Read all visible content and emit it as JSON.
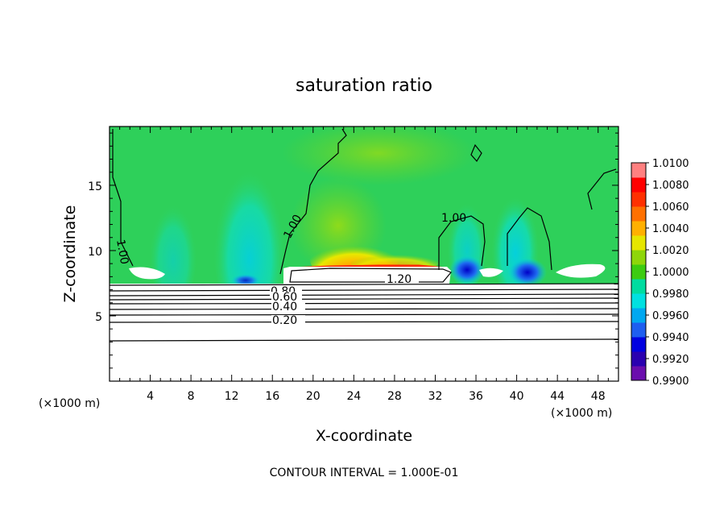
{
  "chart_data": {
    "type": "heatmap",
    "title": "saturation ratio",
    "xlabel": "X-coordinate",
    "ylabel": "Z-coordinate",
    "x_unit": "(×1000 m)",
    "z_unit": "(×1000 m)",
    "xlim": [
      0,
      50
    ],
    "ylim": [
      0,
      19.5
    ],
    "x_ticks": [
      4,
      8,
      12,
      16,
      20,
      24,
      28,
      32,
      36,
      40,
      44,
      48
    ],
    "y_ticks": [
      5,
      10,
      15
    ],
    "colorbar": {
      "labels": [
        "1.0100",
        "1.0080",
        "1.0060",
        "1.0040",
        "1.0020",
        "1.0000",
        "0.9980",
        "0.9960",
        "0.9940",
        "0.9920",
        "0.9900"
      ],
      "min": 0.99,
      "max": 1.01,
      "colors": [
        "#6a0dad",
        "#2a00b0",
        "#0000e0",
        "#1e5ef0",
        "#00a8f0",
        "#00e0e0",
        "#00dca0",
        "#3ccc10",
        "#8ed60a",
        "#e6e600",
        "#ffb000",
        "#ff7000",
        "#ff3000",
        "#ff0000",
        "#ff8080"
      ]
    },
    "contour_labels": [
      "1.00",
      "1.00",
      "1.00",
      "1.20",
      "0.80",
      "0.60",
      "0.40",
      "0.20"
    ],
    "contour_interval_text": "CONTOUR INTERVAL = 1.000E-01"
  }
}
